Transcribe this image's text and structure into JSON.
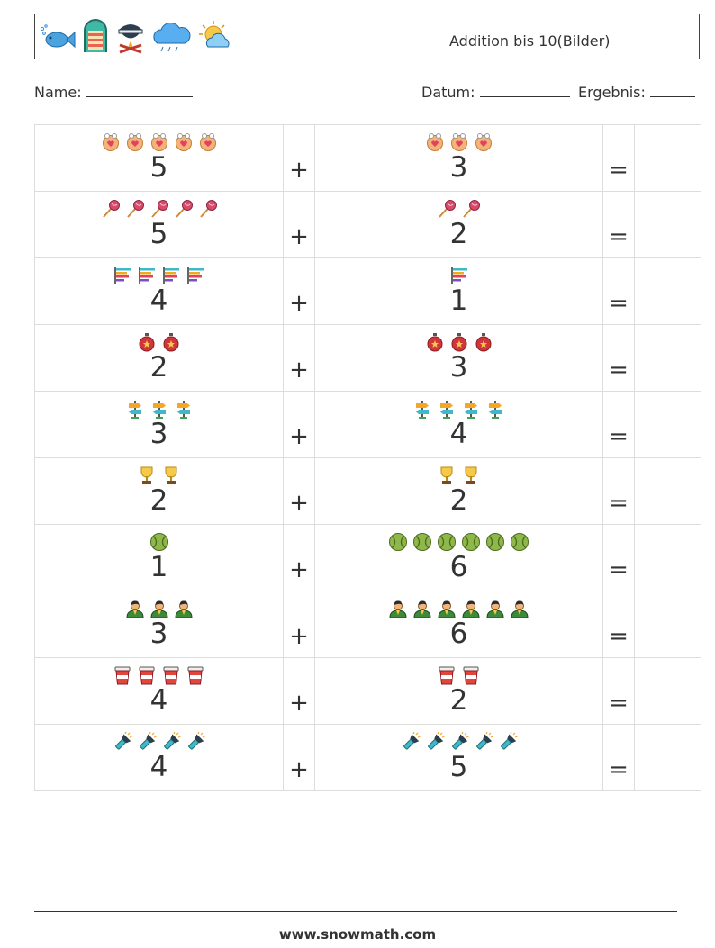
{
  "header": {
    "title": "Addition bis 10(Bilder)",
    "icons": [
      "fish-icon",
      "raft-icon",
      "campfire-pot-icon",
      "rain-cloud-icon",
      "sun-cloud-icon"
    ]
  },
  "meta": {
    "name_label": "Name:",
    "date_label": "Datum:",
    "result_label": "Ergebnis:"
  },
  "operators": {
    "plus": "+",
    "equals": "="
  },
  "problems": [
    {
      "a": 5,
      "b": 3,
      "icon_a": "doll-face-icon",
      "icon_b": "doll-face-icon"
    },
    {
      "a": 5,
      "b": 2,
      "icon_a": "lollipop-icon",
      "icon_b": "lollipop-icon"
    },
    {
      "a": 4,
      "b": 1,
      "icon_a": "bar-chart-icon",
      "icon_b": "bar-chart-icon"
    },
    {
      "a": 2,
      "b": 3,
      "icon_a": "ornament-ball-icon",
      "icon_b": "ornament-ball-icon"
    },
    {
      "a": 3,
      "b": 4,
      "icon_a": "signpost-icon",
      "icon_b": "signpost-icon"
    },
    {
      "a": 2,
      "b": 2,
      "icon_a": "trophy-icon",
      "icon_b": "trophy-icon"
    },
    {
      "a": 1,
      "b": 6,
      "icon_a": "tennis-ball-icon",
      "icon_b": "tennis-ball-icon"
    },
    {
      "a": 3,
      "b": 6,
      "icon_a": "person-icon",
      "icon_b": "person-icon"
    },
    {
      "a": 4,
      "b": 2,
      "icon_a": "cup-icon",
      "icon_b": "cup-icon"
    },
    {
      "a": 4,
      "b": 5,
      "icon_a": "flashlight-icon",
      "icon_b": "flashlight-icon"
    }
  ],
  "footer": {
    "url": "www.snowmath.com"
  }
}
